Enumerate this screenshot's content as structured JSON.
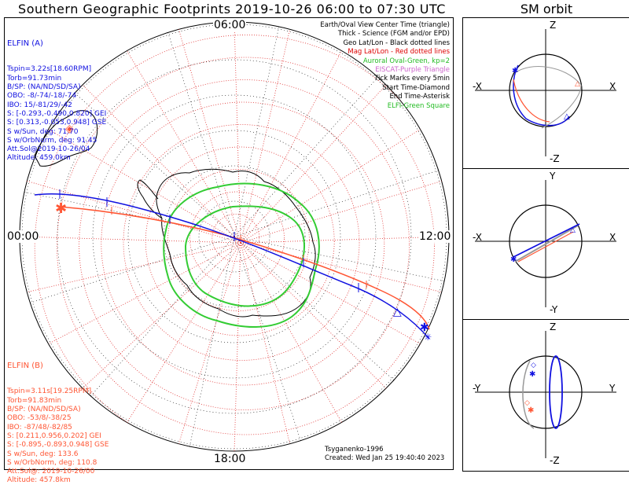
{
  "header": {
    "title": "Southern Geographic Footprints 2019-10-26 06:00 to 07:30 UTC",
    "sm_title": "SM orbit"
  },
  "clock_labels": {
    "top": "06:00",
    "left": "00:00",
    "right": "12:00",
    "bottom": "18:00"
  },
  "elfin_a": {
    "name": "ELFIN (A)",
    "color": "#1010e0",
    "lines": [
      "Tspin=3.22s[18.60RPM]",
      "Torb=91.73min",
      "B/SP: (NA/ND/SD/SA)",
      "OBO: -8/-74/-18/-74",
      "IBO: 15/-81/29/-42",
      "S: [-0.293,-0.490,0.820] GEI",
      "S: [0.313,-0.053,0.948] GSE",
      "S w/Sun, deg: 71.70",
      "S w/OrbNorm, deg: 91.45",
      "Att.Sol@2019-10-26/04",
      "Altitude: 459.0km"
    ]
  },
  "elfin_b": {
    "name": "ELFIN (B)",
    "color": "#ff5533",
    "lines": [
      "Tspin=3.11s[19.25RPM]",
      "Torb=91.83min",
      "B/SP: (NA/ND/SD/SA)",
      "OBO: -53/8/-38/25",
      "IBO: -87/48/-82/85",
      "S: [0.211,0.956,0.202] GEI",
      "S: [-0.895,-0.893,0.948] GSE",
      "S w/Sun, deg: 133.6",
      "S w/OrbNorm, deg: 110.8",
      "Att.Sol@: 2019-10-26/00",
      "Altitude: 457.8km"
    ]
  },
  "legend": [
    {
      "text": "Earth/Oval View Center Time (triangle)",
      "color": "#000000"
    },
    {
      "text": "Thick - Science (FGM and/or EPD)",
      "color": "#000000"
    },
    {
      "text": "Geo Lat/Lon - Black dotted lines",
      "color": "#000000"
    },
    {
      "text": "Mag Lat/Lon - Red dotted lines",
      "color": "#dd0000"
    },
    {
      "text": "Auroral Oval-Green, kp=2",
      "color": "#22bb22"
    },
    {
      "text": "EISCAT-Purple Triangle",
      "color": "#cc66cc"
    },
    {
      "text": "Tick Marks every 5min",
      "color": "#000000"
    },
    {
      "text": "Start Time-Diamond",
      "color": "#000000"
    },
    {
      "text": "End Time-Asterisk",
      "color": "#000000"
    },
    {
      "text": "ELFI-Green Square",
      "color": "#22bb22"
    }
  ],
  "credits": {
    "model": "Tsyganenko-1996",
    "created": "Created: Wed Jan 25 19:40:40 2023"
  },
  "sm_panels": [
    {
      "top": "Z",
      "bottom": "-Z",
      "left": "-X",
      "right": "X"
    },
    {
      "top": "Y",
      "bottom": "-Y",
      "left": "-X",
      "right": "X"
    },
    {
      "top": "Z",
      "bottom": "-Z",
      "left": "-Y",
      "right": "Y"
    }
  ],
  "colors": {
    "elfin_a": "#1010e0",
    "elfin_b": "#ff5533",
    "oval": "#33cc33",
    "mag_grid": "#e03030",
    "geo_grid": "#000000"
  }
}
